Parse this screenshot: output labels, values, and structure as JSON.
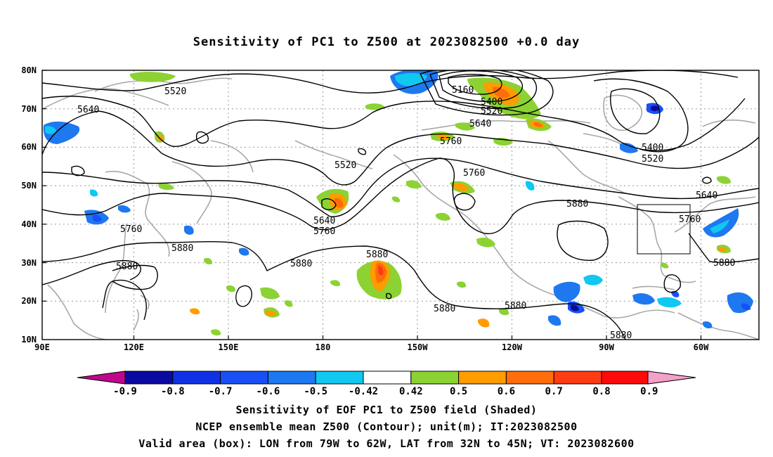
{
  "title": "Sensitivity of PC1 to Z500 at 2023082500 +0.0 day",
  "lat_labels": [
    "80N",
    "70N",
    "60N",
    "50N",
    "40N",
    "30N",
    "20N",
    "10N"
  ],
  "lon_labels": [
    "90E",
    "120E",
    "150E",
    "180",
    "150W",
    "120W",
    "90W",
    "60W"
  ],
  "contour_labels": [
    "5520",
    "5640",
    "5160",
    "5400",
    "5520",
    "5640",
    "5760",
    "5520",
    "5760",
    "5400",
    "5520",
    "5640",
    "5760",
    "5880",
    "5640",
    "5760",
    "5760",
    "5880",
    "5880",
    "5880",
    "5880",
    "5880",
    "5880",
    "5880",
    "5880"
  ],
  "colorbar": {
    "labels": [
      "-0.9",
      "-0.8",
      "-0.7",
      "-0.6",
      "-0.5",
      "-0.42",
      "0.42",
      "0.5",
      "0.6",
      "0.7",
      "0.8",
      "0.9"
    ],
    "colors": [
      "#c0068c",
      "#0a0aa0",
      "#1030e6",
      "#1850f5",
      "#1e78f0",
      "#10c8f0",
      "#ffffff",
      "#8cd232",
      "#ff9c00",
      "#ff6e0a",
      "#ff3c14",
      "#ff0a0a",
      "#f4a0c8"
    ]
  },
  "valid_box": {
    "lon_from": "79W",
    "lon_to": "62W",
    "lat_from": "32N",
    "lat_to": "45N"
  },
  "captions": [
    "Sensitivity of EOF PC1 to Z500 field (Shaded)",
    "NCEP ensemble mean Z500 (Contour); unit(m); IT:2023082500",
    "Valid area (box): LON from 79W to 62W, LAT from 32N to 45N; VT: 2023082600"
  ]
}
